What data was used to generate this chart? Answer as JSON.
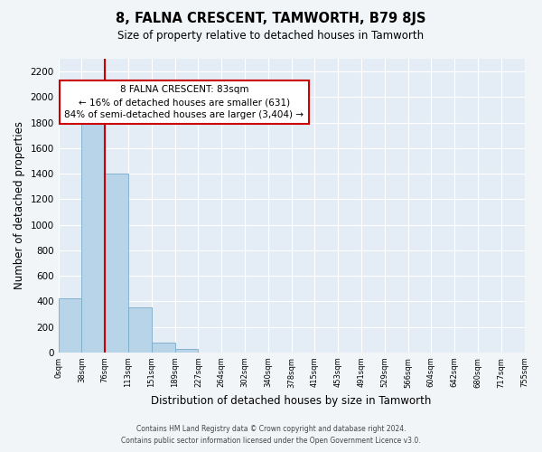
{
  "title": "8, FALNA CRESCENT, TAMWORTH, B79 8JS",
  "subtitle": "Size of property relative to detached houses in Tamworth",
  "xlabel": "Distribution of detached houses by size in Tamworth",
  "ylabel": "Number of detached properties",
  "bar_values": [
    420,
    1800,
    1400,
    350,
    80,
    25,
    0,
    0,
    0,
    0,
    0,
    0,
    0,
    0,
    0,
    0,
    0,
    0,
    0,
    0
  ],
  "bin_labels": [
    "0sqm",
    "38sqm",
    "76sqm",
    "113sqm",
    "151sqm",
    "189sqm",
    "227sqm",
    "264sqm",
    "302sqm",
    "340sqm",
    "378sqm",
    "415sqm",
    "453sqm",
    "491sqm",
    "529sqm",
    "566sqm",
    "604sqm",
    "642sqm",
    "680sqm",
    "717sqm",
    "755sqm"
  ],
  "bar_color": "#b8d4e8",
  "bar_edge_color": "#7aaac8",
  "vline_x": 2,
  "vline_color": "#cc0000",
  "annotation_title": "8 FALNA CRESCENT: 83sqm",
  "annotation_line1": "← 16% of detached houses are smaller (631)",
  "annotation_line2": "84% of semi-detached houses are larger (3,404) →",
  "annotation_box_color": "#ffffff",
  "annotation_box_edge": "#cc0000",
  "ylim": [
    0,
    2300
  ],
  "yticks": [
    0,
    200,
    400,
    600,
    800,
    1000,
    1200,
    1400,
    1600,
    1800,
    2000,
    2200
  ],
  "footer_line1": "Contains HM Land Registry data © Crown copyright and database right 2024.",
  "footer_line2": "Contains public sector information licensed under the Open Government Licence v3.0.",
  "background_color": "#f2f5f8",
  "plot_background_color": "#e4edf5"
}
